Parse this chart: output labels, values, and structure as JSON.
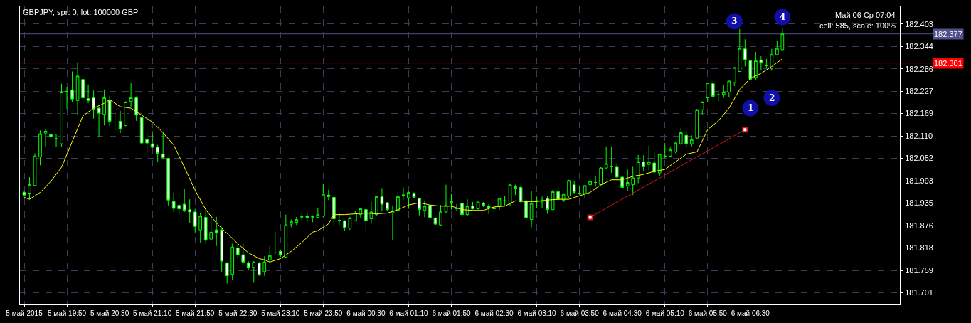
{
  "chart_data": {
    "type": "candlestick",
    "title": "GBPJPY, spr: 0, lot: 100000 GBP",
    "color": "#00ff00",
    "grid": true,
    "annotations": [
      "Май 06 Ср 07:04",
      "cell: 585, scale: 100%",
      {
        "text": "1",
        "x": "2015-05-06T06:30",
        "y": 182.183
      },
      {
        "text": "2",
        "x": "2015-05-06T06:50",
        "y": 182.21
      },
      {
        "text": "3",
        "x": "2015-05-06T06:15",
        "y": 182.41
      },
      {
        "text": "4",
        "x": "2015-05-06T07:00",
        "y": 182.421
      }
    ],
    "x": [
      "2015-05-05T19:10",
      "2015-05-05T19:15",
      "2015-05-05T19:20",
      "2015-05-05T19:25",
      "2015-05-05T19:30",
      "2015-05-05T19:35",
      "2015-05-05T19:40",
      "2015-05-05T19:45",
      "2015-05-05T19:50",
      "2015-05-05T19:55",
      "2015-05-05T20:00",
      "2015-05-05T20:05",
      "2015-05-05T20:10",
      "2015-05-05T20:15",
      "2015-05-05T20:20",
      "2015-05-05T20:25",
      "2015-05-05T20:30",
      "2015-05-05T20:35",
      "2015-05-05T20:40",
      "2015-05-05T20:45",
      "2015-05-05T20:50",
      "2015-05-05T20:55",
      "2015-05-05T21:00",
      "2015-05-05T21:05",
      "2015-05-05T21:10",
      "2015-05-05T21:15",
      "2015-05-05T21:20",
      "2015-05-05T21:25",
      "2015-05-05T21:30",
      "2015-05-05T21:35",
      "2015-05-05T21:40",
      "2015-05-05T21:45",
      "2015-05-05T21:50",
      "2015-05-05T21:55",
      "2015-05-05T22:00",
      "2015-05-05T22:05",
      "2015-05-05T22:10",
      "2015-05-05T22:15",
      "2015-05-05T22:20",
      "2015-05-05T22:25",
      "2015-05-05T22:30",
      "2015-05-05T22:35",
      "2015-05-05T22:40",
      "2015-05-05T22:45",
      "2015-05-05T22:50",
      "2015-05-05T22:55",
      "2015-05-05T23:00",
      "2015-05-05T23:05",
      "2015-05-05T23:10",
      "2015-05-05T23:15",
      "2015-05-05T23:20",
      "2015-05-05T23:25",
      "2015-05-05T23:30",
      "2015-05-05T23:35",
      "2015-05-05T23:40",
      "2015-05-05T23:45",
      "2015-05-05T23:50",
      "2015-05-05T23:55",
      "2015-05-06T00:00",
      "2015-05-06T00:05",
      "2015-05-06T00:10",
      "2015-05-06T00:15",
      "2015-05-06T00:20",
      "2015-05-06T00:25",
      "2015-05-06T00:30",
      "2015-05-06T00:35",
      "2015-05-06T00:40",
      "2015-05-06T00:45",
      "2015-05-06T00:50",
      "2015-05-06T00:55",
      "2015-05-06T01:00",
      "2015-05-06T01:05",
      "2015-05-06T01:10",
      "2015-05-06T01:15",
      "2015-05-06T01:20",
      "2015-05-06T01:25",
      "2015-05-06T01:30",
      "2015-05-06T01:35",
      "2015-05-06T01:40",
      "2015-05-06T01:45",
      "2015-05-06T01:50",
      "2015-05-06T01:55",
      "2015-05-06T02:00",
      "2015-05-06T02:05",
      "2015-05-06T02:10",
      "2015-05-06T02:15",
      "2015-05-06T02:20",
      "2015-05-06T02:25",
      "2015-05-06T02:30",
      "2015-05-06T02:35",
      "2015-05-06T02:40",
      "2015-05-06T02:45",
      "2015-05-06T02:50",
      "2015-05-06T02:55",
      "2015-05-06T03:00",
      "2015-05-06T03:05",
      "2015-05-06T03:10",
      "2015-05-06T03:15",
      "2015-05-06T03:20",
      "2015-05-06T03:25",
      "2015-05-06T03:30",
      "2015-05-06T03:35",
      "2015-05-06T03:40",
      "2015-05-06T03:45",
      "2015-05-06T03:50",
      "2015-05-06T03:55",
      "2015-05-06T04:00",
      "2015-05-06T04:05",
      "2015-05-06T04:10",
      "2015-05-06T04:15",
      "2015-05-06T04:20",
      "2015-05-06T04:25",
      "2015-05-06T04:30",
      "2015-05-06T04:35",
      "2015-05-06T04:40",
      "2015-05-06T04:45",
      "2015-05-06T04:50",
      "2015-05-06T04:55",
      "2015-05-06T05:00",
      "2015-05-06T05:05",
      "2015-05-06T05:10",
      "2015-05-06T05:15",
      "2015-05-06T05:20",
      "2015-05-06T05:25",
      "2015-05-06T05:30",
      "2015-05-06T05:35",
      "2015-05-06T05:40",
      "2015-05-06T05:45",
      "2015-05-06T05:50",
      "2015-05-06T05:55",
      "2015-05-06T06:00",
      "2015-05-06T06:05",
      "2015-05-06T06:10",
      "2015-05-06T06:15",
      "2015-05-06T06:20",
      "2015-05-06T06:25",
      "2015-05-06T06:30",
      "2015-05-06T06:35",
      "2015-05-06T06:40",
      "2015-05-06T06:45",
      "2015-05-06T06:50",
      "2015-05-06T06:55",
      "2015-05-06T07:00"
    ],
    "ohlc": [
      [
        181.963,
        181.967,
        181.952,
        181.956
      ],
      [
        181.961,
        182.003,
        181.945,
        181.983
      ],
      [
        181.981,
        182.065,
        181.98,
        182.058
      ],
      [
        182.056,
        182.125,
        182.034,
        182.116
      ],
      [
        182.118,
        182.129,
        182.081,
        182.123
      ],
      [
        182.114,
        182.119,
        182.074,
        182.109
      ],
      [
        182.103,
        182.116,
        182.081,
        182.103
      ],
      [
        182.09,
        182.247,
        182.083,
        182.225
      ],
      [
        182.227,
        182.239,
        182.181,
        182.227
      ],
      [
        182.23,
        182.279,
        182.199,
        182.207
      ],
      [
        182.203,
        182.303,
        182.167,
        182.267
      ],
      [
        182.258,
        182.272,
        182.192,
        182.21
      ],
      [
        182.208,
        182.245,
        182.196,
        182.203
      ],
      [
        182.21,
        182.229,
        182.156,
        182.181
      ],
      [
        182.183,
        182.185,
        182.109,
        182.17
      ],
      [
        182.167,
        182.232,
        182.138,
        182.21
      ],
      [
        182.203,
        182.214,
        182.136,
        182.149
      ],
      [
        182.147,
        182.172,
        182.119,
        182.147
      ],
      [
        182.149,
        182.176,
        182.118,
        182.129
      ],
      [
        182.138,
        182.201,
        182.136,
        182.199
      ],
      [
        182.201,
        182.25,
        182.187,
        182.21
      ],
      [
        182.21,
        182.214,
        182.15,
        182.165
      ],
      [
        182.158,
        182.159,
        182.09,
        182.092
      ],
      [
        182.101,
        182.123,
        182.054,
        182.092
      ],
      [
        182.09,
        182.123,
        182.079,
        182.081
      ],
      [
        182.081,
        182.087,
        182.043,
        182.065
      ],
      [
        182.063,
        182.119,
        182.049,
        182.054
      ],
      [
        182.052,
        182.052,
        181.929,
        181.943
      ],
      [
        181.939,
        181.963,
        181.912,
        181.921
      ],
      [
        181.929,
        181.936,
        181.905,
        181.92
      ],
      [
        181.932,
        181.972,
        181.912,
        181.916
      ],
      [
        181.918,
        181.945,
        181.883,
        181.912
      ],
      [
        181.912,
        181.92,
        181.858,
        181.874
      ],
      [
        181.865,
        181.909,
        181.832,
        181.901
      ],
      [
        181.898,
        181.92,
        181.829,
        181.838
      ],
      [
        181.841,
        181.903,
        181.836,
        181.859
      ],
      [
        181.865,
        181.899,
        181.823,
        181.858
      ],
      [
        181.865,
        181.872,
        181.756,
        181.783
      ],
      [
        181.778,
        181.781,
        181.725,
        181.745
      ],
      [
        181.749,
        181.829,
        181.734,
        181.82
      ],
      [
        181.818,
        181.827,
        181.79,
        181.8
      ],
      [
        181.8,
        181.829,
        181.776,
        181.781
      ],
      [
        181.778,
        181.783,
        181.759,
        181.767
      ],
      [
        181.767,
        181.783,
        181.727,
        181.781
      ],
      [
        181.778,
        181.781,
        181.745,
        181.747
      ],
      [
        181.756,
        181.796,
        181.745,
        181.781
      ],
      [
        181.787,
        181.823,
        181.781,
        181.798
      ],
      [
        181.805,
        181.859,
        181.801,
        181.805
      ],
      [
        181.809,
        181.814,
        181.794,
        181.8
      ],
      [
        181.794,
        181.905,
        181.792,
        181.878
      ],
      [
        181.88,
        181.892,
        181.872,
        181.887
      ],
      [
        181.885,
        181.899,
        181.878,
        181.892
      ],
      [
        181.899,
        181.909,
        181.889,
        181.899
      ],
      [
        181.901,
        181.909,
        181.887,
        181.898
      ],
      [
        181.899,
        181.903,
        181.885,
        181.899
      ],
      [
        181.898,
        181.923,
        181.896,
        181.905
      ],
      [
        181.901,
        181.985,
        181.899,
        181.958
      ],
      [
        181.956,
        181.97,
        181.943,
        181.952
      ],
      [
        181.95,
        181.95,
        181.876,
        181.894
      ],
      [
        181.89,
        181.909,
        181.878,
        181.89
      ],
      [
        181.889,
        181.89,
        181.863,
        181.87
      ],
      [
        181.87,
        181.899,
        181.865,
        181.896
      ],
      [
        181.889,
        181.914,
        181.887,
        181.909
      ],
      [
        181.905,
        181.923,
        181.896,
        181.92
      ],
      [
        181.918,
        181.918,
        181.863,
        181.889
      ],
      [
        181.894,
        181.939,
        181.881,
        181.912
      ],
      [
        181.905,
        181.952,
        181.903,
        181.952
      ],
      [
        181.952,
        181.974,
        181.914,
        181.932
      ],
      [
        181.936,
        181.938,
        181.914,
        181.918
      ],
      [
        181.909,
        181.929,
        181.838,
        181.914
      ],
      [
        181.916,
        181.967,
        181.914,
        181.952
      ],
      [
        181.956,
        181.976,
        181.945,
        181.956
      ],
      [
        181.949,
        181.965,
        181.92,
        181.963
      ],
      [
        181.961,
        181.963,
        181.947,
        181.95
      ],
      [
        181.947,
        181.947,
        181.903,
        181.918
      ],
      [
        181.916,
        181.941,
        181.898,
        181.927
      ],
      [
        181.929,
        181.93,
        181.878,
        181.896
      ],
      [
        181.896,
        181.899,
        181.878,
        181.88
      ],
      [
        181.878,
        181.93,
        181.876,
        181.912
      ],
      [
        181.912,
        181.983,
        181.909,
        181.929
      ],
      [
        181.934,
        181.96,
        181.918,
        181.939
      ],
      [
        181.921,
        181.932,
        181.914,
        181.921
      ],
      [
        181.934,
        181.936,
        181.892,
        181.905
      ],
      [
        181.905,
        181.945,
        181.901,
        181.927
      ],
      [
        181.927,
        181.938,
        181.918,
        181.92
      ],
      [
        181.92,
        181.938,
        181.918,
        181.938
      ],
      [
        181.934,
        181.938,
        181.925,
        181.929
      ],
      [
        181.927,
        181.932,
        181.907,
        181.923
      ],
      [
        181.923,
        181.927,
        181.918,
        181.92
      ],
      [
        181.927,
        181.949,
        181.918,
        181.947
      ],
      [
        181.941,
        181.954,
        181.929,
        181.941
      ],
      [
        181.934,
        181.983,
        181.927,
        181.983
      ],
      [
        181.978,
        181.983,
        181.956,
        181.974
      ],
      [
        181.976,
        181.981,
        181.936,
        181.939
      ],
      [
        181.941,
        181.945,
        181.883,
        181.896
      ],
      [
        181.892,
        181.967,
        181.872,
        181.934
      ],
      [
        181.941,
        181.952,
        181.921,
        181.941
      ],
      [
        181.938,
        181.952,
        181.921,
        181.943
      ],
      [
        181.947,
        181.954,
        181.907,
        181.918
      ],
      [
        181.918,
        181.97,
        181.918,
        181.965
      ],
      [
        181.965,
        181.978,
        181.941,
        181.945
      ],
      [
        181.943,
        181.961,
        181.938,
        181.958
      ],
      [
        181.954,
        181.996,
        181.949,
        181.994
      ],
      [
        181.983,
        181.994,
        181.96,
        181.963
      ],
      [
        181.961,
        181.981,
        181.956,
        181.961
      ],
      [
        181.96,
        181.981,
        181.949,
        181.981
      ],
      [
        181.983,
        181.996,
        181.965,
        181.992
      ],
      [
        181.989,
        182.005,
        181.978,
        181.989
      ],
      [
        181.983,
        182.029,
        181.981,
        182.027
      ],
      [
        182.027,
        182.083,
        182.023,
        182.038
      ],
      [
        182.03,
        182.083,
        182.014,
        182.03
      ],
      [
        182.029,
        182.038,
        182.0,
        182.003
      ],
      [
        182.003,
        182.005,
        181.974,
        181.976
      ],
      [
        181.98,
        182.023,
        181.967,
        181.989
      ],
      [
        181.983,
        182.03,
        181.956,
        182.001
      ],
      [
        182.001,
        182.061,
        181.987,
        182.043
      ],
      [
        182.043,
        182.06,
        182.019,
        182.03
      ],
      [
        182.036,
        182.085,
        182.021,
        182.043
      ],
      [
        182.04,
        182.069,
        182.014,
        182.016
      ],
      [
        182.014,
        182.063,
        182.005,
        182.063
      ],
      [
        182.058,
        182.092,
        182.052,
        182.058
      ],
      [
        182.058,
        182.081,
        182.056,
        182.074
      ],
      [
        182.069,
        182.096,
        182.065,
        182.092
      ],
      [
        182.09,
        182.132,
        182.087,
        182.119
      ],
      [
        182.112,
        182.123,
        182.083,
        182.09
      ],
      [
        182.09,
        182.112,
        182.083,
        182.101
      ],
      [
        182.105,
        182.181,
        182.103,
        182.179
      ],
      [
        182.179,
        182.201,
        182.165,
        182.199
      ],
      [
        182.21,
        182.25,
        182.199,
        182.249
      ],
      [
        182.247,
        182.254,
        182.21,
        182.214
      ],
      [
        182.218,
        182.23,
        182.201,
        182.218
      ],
      [
        182.219,
        182.243,
        182.21,
        182.225
      ],
      [
        182.225,
        182.254,
        182.212,
        182.254
      ],
      [
        182.25,
        182.29,
        182.241,
        182.289
      ],
      [
        182.279,
        182.39,
        182.278,
        182.339
      ],
      [
        182.338,
        182.363,
        182.292,
        182.309
      ],
      [
        182.307,
        182.307,
        182.256,
        182.259
      ],
      [
        182.263,
        182.33,
        182.256,
        182.307
      ],
      [
        182.309,
        182.319,
        182.283,
        182.301
      ],
      [
        182.294,
        182.312,
        182.287,
        182.294
      ],
      [
        182.287,
        182.338,
        182.281,
        182.323
      ],
      [
        182.323,
        182.358,
        182.321,
        182.339
      ],
      [
        182.336,
        182.392,
        182.334,
        182.377
      ]
    ],
    "series": [
      {
        "type": "line",
        "color": "#ffff00",
        "x": [
          "2015-05-05T19:10",
          "2015-05-05T19:15",
          "2015-05-05T19:25",
          "2015-05-05T19:35",
          "2015-05-05T19:45",
          "2015-05-05T19:55",
          "2015-05-05T20:05",
          "2015-05-05T20:15",
          "2015-05-05T20:25",
          "2015-05-05T20:30",
          "2015-05-05T20:40",
          "2015-05-05T20:50",
          "2015-05-05T21:00",
          "2015-05-05T21:10",
          "2015-05-05T21:20",
          "2015-05-05T21:30",
          "2015-05-05T21:40",
          "2015-05-05T21:50",
          "2015-05-05T22:00",
          "2015-05-05T22:10",
          "2015-05-05T22:20",
          "2015-05-05T22:30",
          "2015-05-05T22:40",
          "2015-05-05T22:50",
          "2015-05-05T22:55",
          "2015-05-05T23:00",
          "2015-05-05T23:10",
          "2015-05-05T23:20",
          "2015-05-05T23:30",
          "2015-05-05T23:40",
          "2015-05-05T23:45",
          "2015-05-05T23:55",
          "2015-05-06T00:00",
          "2015-05-06T00:10",
          "2015-05-06T00:20",
          "2015-05-06T00:30",
          "2015-05-06T00:40",
          "2015-05-06T00:50",
          "2015-05-06T01:00",
          "2015-05-06T01:10",
          "2015-05-06T01:20",
          "2015-05-06T01:30",
          "2015-05-06T01:40",
          "2015-05-06T01:50",
          "2015-05-06T02:00",
          "2015-05-06T02:10",
          "2015-05-06T02:20",
          "2015-05-06T02:30",
          "2015-05-06T02:40",
          "2015-05-06T02:50",
          "2015-05-06T03:00",
          "2015-05-06T03:10",
          "2015-05-06T03:20",
          "2015-05-06T03:30",
          "2015-05-06T03:40",
          "2015-05-06T03:50",
          "2015-05-06T04:00",
          "2015-05-06T04:10",
          "2015-05-06T04:20",
          "2015-05-06T04:30",
          "2015-05-06T04:40",
          "2015-05-06T04:50",
          "2015-05-06T05:00",
          "2015-05-06T05:10",
          "2015-05-06T05:20",
          "2015-05-06T05:30",
          "2015-05-06T05:40",
          "2015-05-06T05:50",
          "2015-05-06T06:00",
          "2015-05-06T06:10",
          "2015-05-06T06:20",
          "2015-05-06T06:30",
          "2015-05-06T06:40",
          "2015-05-06T06:50",
          "2015-05-06T07:00"
        ],
        "values": [
          181.95,
          181.945,
          181.963,
          181.992,
          182.029,
          182.096,
          182.163,
          182.183,
          182.196,
          182.205,
          182.187,
          182.183,
          182.165,
          182.147,
          182.119,
          182.087,
          182.029,
          181.969,
          181.918,
          181.883,
          181.856,
          181.829,
          181.805,
          181.79,
          181.787,
          181.781,
          181.79,
          181.809,
          181.832,
          181.859,
          181.863,
          181.881,
          181.905,
          181.905,
          181.907,
          181.909,
          181.907,
          181.909,
          181.918,
          181.93,
          181.936,
          181.93,
          181.927,
          181.927,
          181.918,
          181.916,
          181.916,
          181.925,
          181.927,
          181.941,
          181.939,
          181.939,
          181.943,
          181.945,
          181.945,
          181.954,
          181.963,
          181.983,
          181.996,
          181.996,
          182.005,
          182.01,
          182.018,
          182.023,
          182.043,
          182.063,
          182.069,
          182.127,
          182.15,
          182.183,
          182.232,
          182.261,
          182.274,
          182.292,
          182.312
        ]
      },
      {
        "type": "line",
        "color": "#d01818",
        "marker": "square",
        "x": [
          "2015-05-06T04:00",
          "2015-05-06T06:25"
        ],
        "values": [
          181.898,
          182.127
        ]
      }
    ],
    "ref_lines": [
      {
        "axis": "y",
        "value": 182.377,
        "label": "182.377",
        "color": "#50508c"
      },
      {
        "axis": "y",
        "value": 182.301,
        "label": "182.301",
        "color": "#ff0000"
      }
    ],
    "xlim": [
      "2015-05-05T19:06",
      "2015-05-06T08:50"
    ],
    "ylim": [
      181.672,
      182.449
    ],
    "xticks": [
      {
        "value": "2015-05-05T19:10",
        "label": "5 май 2015"
      },
      {
        "value": "2015-05-05T19:50",
        "label": "5 май 19:50"
      },
      {
        "value": "2015-05-05T20:30",
        "label": "5 май 20:30"
      },
      {
        "value": "2015-05-05T21:10",
        "label": "5 май 21:10"
      },
      {
        "value": "2015-05-05T21:50",
        "label": "5 май 21:50"
      },
      {
        "value": "2015-05-05T22:30",
        "label": "5 май 22:30"
      },
      {
        "value": "2015-05-05T23:10",
        "label": "5 май 23:10"
      },
      {
        "value": "2015-05-05T23:50",
        "label": "5 май 23:50"
      },
      {
        "value": "2015-05-06T00:30",
        "label": "6 май 00:30"
      },
      {
        "value": "2015-05-06T01:10",
        "label": "6 май 01:10"
      },
      {
        "value": "2015-05-06T01:50",
        "label": "6 май 01:50"
      },
      {
        "value": "2015-05-06T02:30",
        "label": "6 май 02:30"
      },
      {
        "value": "2015-05-06T03:10",
        "label": "6 май 03:10"
      },
      {
        "value": "2015-05-06T03:50",
        "label": "6 май 03:50"
      },
      {
        "value": "2015-05-06T04:30",
        "label": "6 май 04:30"
      },
      {
        "value": "2015-05-06T05:10",
        "label": "6 май 05:10"
      },
      {
        "value": "2015-05-06T05:50",
        "label": "6 май 05:50"
      },
      {
        "value": "2015-05-06T06:30",
        "label": "6 май 06:30"
      }
    ],
    "yticks": [
      182.403,
      182.344,
      182.286,
      182.227,
      182.169,
      {
        "value": 182.11,
        "label": "182.110"
      },
      182.052,
      181.993,
      181.935,
      181.876,
      181.818,
      181.759,
      181.701
    ]
  }
}
